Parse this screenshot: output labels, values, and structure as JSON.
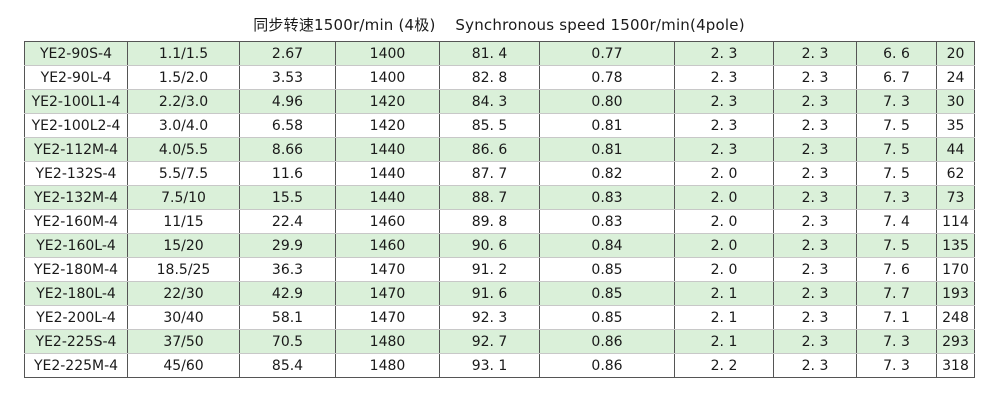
{
  "caption": "同步转速1500r/min (4极)    Synchronous speed 1500r/min(4pole)",
  "row_shading": "#daf0d9",
  "rows": [
    [
      "YE2-90S-4",
      "1.1/1.5",
      "2.67",
      "1400",
      "81. 4",
      "0.77",
      "2. 3",
      "2. 3",
      "6. 6",
      "20"
    ],
    [
      "YE2-90L-4",
      "1.5/2.0",
      "3.53",
      "1400",
      "82. 8",
      "0.78",
      "2. 3",
      "2. 3",
      "6. 7",
      "24"
    ],
    [
      "YE2-100L1-4",
      "2.2/3.0",
      "4.96",
      "1420",
      "84. 3",
      "0.80",
      "2. 3",
      "2. 3",
      "7. 3",
      "30"
    ],
    [
      "YE2-100L2-4",
      "3.0/4.0",
      "6.58",
      "1420",
      "85. 5",
      "0.81",
      "2. 3",
      "2. 3",
      "7. 5",
      "35"
    ],
    [
      "YE2-112M-4",
      "4.0/5.5",
      "8.66",
      "1440",
      "86. 6",
      "0.81",
      "2. 3",
      "2. 3",
      "7. 5",
      "44"
    ],
    [
      "YE2-132S-4",
      "5.5/7.5",
      "11.6",
      "1440",
      "87. 7",
      "0.82",
      "2. 0",
      "2. 3",
      "7. 5",
      "62"
    ],
    [
      "YE2-132M-4",
      "7.5/10",
      "15.5",
      "1440",
      "88. 7",
      "0.83",
      "2. 0",
      "2. 3",
      "7. 3",
      "73"
    ],
    [
      "YE2-160M-4",
      "11/15",
      "22.4",
      "1460",
      "89. 8",
      "0.83",
      "2. 0",
      "2. 3",
      "7. 4",
      "114"
    ],
    [
      "YE2-160L-4",
      "15/20",
      "29.9",
      "1460",
      "90. 6",
      "0.84",
      "2. 0",
      "2. 3",
      "7. 5",
      "135"
    ],
    [
      "YE2-180M-4",
      "18.5/25",
      "36.3",
      "1470",
      "91. 2",
      "0.85",
      "2. 0",
      "2. 3",
      "7. 6",
      "170"
    ],
    [
      "YE2-180L-4",
      "22/30",
      "42.9",
      "1470",
      "91. 6",
      "0.85",
      "2. 1",
      "2. 3",
      "7. 7",
      "193"
    ],
    [
      "YE2-200L-4",
      "30/40",
      "58.1",
      "1470",
      "92. 3",
      "0.85",
      "2. 1",
      "2. 3",
      "7. 1",
      "248"
    ],
    [
      "YE2-225S-4",
      "37/50",
      "70.5",
      "1480",
      "92. 7",
      "0.86",
      "2. 1",
      "2. 3",
      "7. 3",
      "293"
    ],
    [
      "YE2-225M-4",
      "45/60",
      "85.4",
      "1480",
      "93. 1",
      "0.86",
      "2. 2",
      "2. 3",
      "7. 3",
      "318"
    ]
  ]
}
